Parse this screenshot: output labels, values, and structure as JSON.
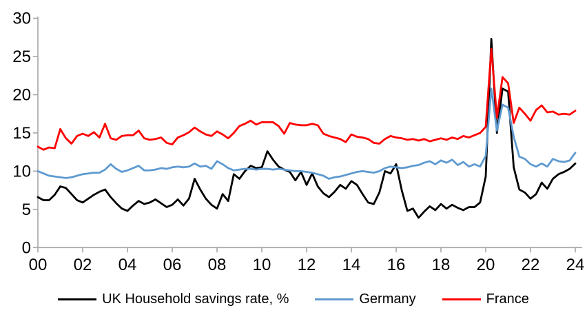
{
  "chart_data": {
    "type": "line",
    "title": "",
    "xlabel": "",
    "ylabel": "",
    "frequency": "quarterly",
    "x_start_year": 2000,
    "x_end_year": 2024,
    "x_tick_labels": [
      "00",
      "02",
      "04",
      "06",
      "08",
      "10",
      "12",
      "14",
      "16",
      "18",
      "20",
      "22",
      "24"
    ],
    "y_ticks": [
      0,
      5,
      10,
      15,
      20,
      25,
      30
    ],
    "ylim": [
      0,
      30
    ],
    "grid": false,
    "legend_position": "bottom",
    "axis_color": "#A6A6A6",
    "series": [
      {
        "name": "UK Household savings rate, %",
        "color": "#000000",
        "values": [
          6.6,
          6.2,
          6.2,
          6.9,
          8.0,
          7.8,
          7.0,
          6.2,
          5.9,
          6.4,
          6.9,
          7.3,
          7.6,
          6.6,
          5.8,
          5.1,
          4.8,
          5.5,
          6.1,
          5.7,
          5.9,
          6.3,
          5.8,
          5.3,
          5.6,
          6.3,
          5.5,
          6.4,
          9.0,
          7.6,
          6.4,
          5.6,
          5.1,
          7.0,
          6.1,
          9.6,
          9.0,
          10.0,
          10.7,
          10.4,
          10.5,
          12.6,
          11.5,
          10.6,
          10.2,
          9.9,
          8.8,
          9.9,
          8.2,
          9.7,
          8.0,
          7.1,
          6.6,
          7.3,
          8.2,
          7.7,
          8.7,
          8.2,
          7.0,
          5.9,
          5.7,
          7.2,
          10.0,
          9.7,
          10.9,
          7.5,
          4.8,
          5.1,
          3.9,
          4.7,
          5.4,
          4.9,
          5.7,
          5.1,
          5.6,
          5.2,
          4.9,
          5.3,
          5.3,
          5.9,
          9.3,
          27.3,
          15.0,
          20.8,
          20.4,
          10.5,
          7.6,
          7.2,
          6.4,
          7.0,
          8.5,
          7.7,
          9.0,
          9.6,
          9.9,
          10.3,
          11.0
        ]
      },
      {
        "name": "Germany",
        "color": "#5E9AD0",
        "values": [
          10.0,
          9.7,
          9.4,
          9.3,
          9.2,
          9.1,
          9.2,
          9.4,
          9.6,
          9.7,
          9.8,
          9.8,
          10.2,
          10.9,
          10.3,
          9.9,
          10.1,
          10.4,
          10.7,
          10.1,
          10.1,
          10.2,
          10.4,
          10.3,
          10.5,
          10.6,
          10.5,
          10.6,
          11.0,
          10.6,
          10.7,
          10.3,
          11.3,
          10.9,
          10.4,
          10.1,
          10.2,
          10.3,
          10.3,
          10.2,
          10.3,
          10.3,
          10.2,
          10.3,
          10.2,
          10.1,
          10.0,
          10.0,
          9.9,
          9.8,
          9.6,
          9.4,
          9.0,
          9.2,
          9.3,
          9.5,
          9.7,
          9.9,
          10.0,
          9.9,
          9.8,
          10.0,
          10.4,
          10.6,
          10.5,
          10.4,
          10.5,
          10.7,
          10.8,
          11.1,
          11.3,
          10.9,
          11.4,
          11.1,
          11.5,
          10.8,
          11.2,
          10.6,
          10.9,
          10.6,
          12.0,
          20.8,
          15.3,
          18.7,
          18.3,
          14.5,
          11.9,
          11.6,
          10.9,
          10.6,
          11.0,
          10.6,
          11.6,
          11.3,
          11.2,
          11.4,
          12.4
        ]
      },
      {
        "name": "France",
        "color": "#FF0000",
        "values": [
          13.2,
          12.8,
          13.1,
          13.0,
          15.5,
          14.3,
          13.6,
          14.6,
          14.9,
          14.6,
          15.1,
          14.4,
          16.2,
          14.3,
          14.1,
          14.6,
          14.7,
          14.7,
          15.3,
          14.3,
          14.1,
          14.2,
          14.4,
          13.7,
          13.5,
          14.4,
          14.7,
          15.1,
          15.7,
          15.2,
          14.8,
          14.6,
          15.2,
          14.8,
          14.3,
          15.0,
          15.9,
          16.2,
          16.6,
          16.1,
          16.4,
          16.4,
          16.4,
          15.9,
          14.9,
          16.3,
          16.1,
          16.0,
          16.0,
          16.2,
          16.0,
          14.9,
          14.6,
          14.4,
          14.2,
          13.8,
          14.8,
          14.5,
          14.4,
          14.2,
          13.7,
          13.6,
          14.2,
          14.6,
          14.4,
          14.3,
          14.1,
          14.2,
          14.0,
          14.2,
          13.9,
          14.1,
          14.3,
          14.1,
          14.4,
          14.2,
          14.6,
          14.4,
          14.7,
          15.0,
          15.8,
          26.0,
          17.0,
          22.3,
          21.5,
          16.3,
          18.3,
          17.5,
          16.6,
          18.0,
          18.6,
          17.7,
          17.8,
          17.4,
          17.5,
          17.4,
          17.9
        ]
      }
    ]
  }
}
